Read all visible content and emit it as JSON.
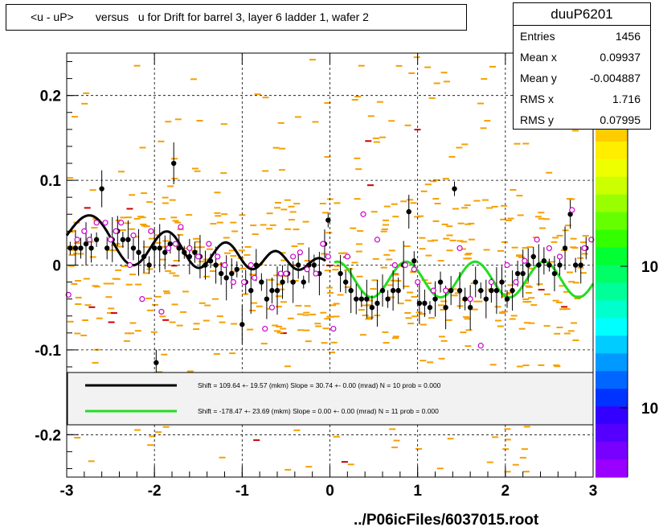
{
  "title": "<u - uP>       versus   u for Drift for barrel 3, layer 6 ladder 1, wafer 2",
  "stats": {
    "name": "duuP6201",
    "rows": [
      {
        "key": "Entries",
        "value": "1456"
      },
      {
        "key": "Mean x",
        "value": "0.09937"
      },
      {
        "key": "Mean y",
        "value": "-0.004887"
      },
      {
        "key": "RMS x",
        "value": "1.716"
      },
      {
        "key": "RMS y",
        "value": "0.07995"
      }
    ]
  },
  "footer": "../P06icFiles/6037015.root",
  "colorbar": {
    "labels": [
      "10",
      "10"
    ]
  },
  "fit_legend": [
    {
      "color": "#000000",
      "text": "Shift =   109.64 +- 19.57 (mkm) Slope =    30.74 +- 0.00 (mrad)  N = 10 prob = 0.000"
    },
    {
      "color": "#22dd22",
      "text": "Shift =  -178.47 +- 23.69 (mkm) Slope =     0.00 +- 0.00 (mrad)  N = 11 prob = 0.000"
    }
  ],
  "chart_data": {
    "type": "scatter",
    "title": "<u - uP>       versus   u for Drift for barrel 3, layer 6 ladder 1, wafer 2",
    "xlim": [
      -3,
      3
    ],
    "ylim": [
      -0.25,
      0.25
    ],
    "xticks": [
      -3,
      -2,
      -1,
      0,
      1,
      2,
      3
    ],
    "xtick_labels": [
      "-3",
      "-2",
      "-1",
      "0",
      "1",
      "2",
      "3"
    ],
    "yticks": [
      -0.2,
      -0.1,
      0,
      0.1,
      0.2
    ],
    "ytick_labels": [
      "-0.2",
      "-0.1",
      "0",
      "0.1",
      "0.2"
    ],
    "grid": true,
    "series": [
      {
        "name": "profile (black)",
        "points": [
          [
            -2.96,
            0.02
          ],
          [
            -2.9,
            0.02
          ],
          [
            -2.84,
            0.02
          ],
          [
            -2.78,
            0.025
          ],
          [
            -2.72,
            0.02
          ],
          [
            -2.66,
            0.03
          ],
          [
            -2.6,
            0.09
          ],
          [
            -2.54,
            0.02
          ],
          [
            -2.48,
            0.03
          ],
          [
            -2.42,
            0.04
          ],
          [
            -2.36,
            0.03
          ],
          [
            -2.3,
            0.03
          ],
          [
            -2.24,
            0.02
          ],
          [
            -2.18,
            0.015
          ],
          [
            -2.12,
            0.01
          ],
          [
            -2.06,
            0.0
          ],
          [
            -2.0,
            0.02
          ],
          [
            -1.98,
            -0.115
          ],
          [
            -1.94,
            0.02
          ],
          [
            -1.88,
            0.015
          ],
          [
            -1.82,
            0.025
          ],
          [
            -1.78,
            0.12
          ],
          [
            -1.72,
            0.02
          ],
          [
            -1.66,
            0.015
          ],
          [
            -1.6,
            0.01
          ],
          [
            -1.54,
            0.015
          ],
          [
            -1.48,
            0.01
          ],
          [
            -1.42,
            0.0
          ],
          [
            -1.36,
            0.005
          ],
          [
            -1.3,
            0.0
          ],
          [
            -1.24,
            -0.01
          ],
          [
            -1.18,
            -0.015
          ],
          [
            -1.12,
            -0.01
          ],
          [
            -1.06,
            -0.005
          ],
          [
            -1.0,
            -0.07
          ],
          [
            -0.96,
            -0.02
          ],
          [
            -0.9,
            -0.03
          ],
          [
            -0.84,
            0.0
          ],
          [
            -0.78,
            -0.02
          ],
          [
            -0.72,
            -0.04
          ],
          [
            -0.66,
            -0.03
          ],
          [
            -0.6,
            -0.03
          ],
          [
            -0.54,
            -0.02
          ],
          [
            -0.48,
            -0.01
          ],
          [
            -0.42,
            -0.02
          ],
          [
            -0.36,
            0.0
          ],
          [
            -0.3,
            -0.02
          ],
          [
            -0.24,
            0.0
          ],
          [
            -0.18,
            0.0
          ],
          [
            -0.12,
            -0.01
          ],
          [
            -0.06,
            0.025
          ],
          [
            -0.02,
            0.053
          ],
          [
            0.12,
            -0.01
          ],
          [
            0.18,
            -0.02
          ],
          [
            0.24,
            -0.03
          ],
          [
            0.3,
            -0.04
          ],
          [
            0.36,
            -0.04
          ],
          [
            0.42,
            -0.04
          ],
          [
            0.48,
            -0.05
          ],
          [
            0.54,
            -0.045
          ],
          [
            0.6,
            -0.03
          ],
          [
            0.66,
            -0.04
          ],
          [
            0.72,
            -0.03
          ],
          [
            0.78,
            -0.03
          ],
          [
            0.84,
            0.0
          ],
          [
            0.9,
            0.063
          ],
          [
            0.96,
            0.005
          ],
          [
            1.02,
            -0.045
          ],
          [
            1.08,
            -0.045
          ],
          [
            1.14,
            -0.05
          ],
          [
            1.2,
            -0.04
          ],
          [
            1.26,
            -0.02
          ],
          [
            1.32,
            -0.05
          ],
          [
            1.38,
            -0.03
          ],
          [
            1.42,
            0.09
          ],
          [
            1.48,
            -0.03
          ],
          [
            1.54,
            -0.04
          ],
          [
            1.6,
            -0.05
          ],
          [
            1.66,
            -0.02
          ],
          [
            1.72,
            -0.03
          ],
          [
            1.78,
            -0.04
          ],
          [
            1.84,
            -0.03
          ],
          [
            1.9,
            -0.03
          ],
          [
            1.96,
            -0.02
          ],
          [
            2.02,
            -0.04
          ],
          [
            2.08,
            -0.03
          ],
          [
            2.14,
            -0.01
          ],
          [
            2.2,
            -0.01
          ],
          [
            2.26,
            -0.0
          ],
          [
            2.32,
            0.01
          ],
          [
            2.38,
            0.0
          ],
          [
            2.44,
            0.005
          ],
          [
            2.5,
            0.0
          ],
          [
            2.56,
            -0.01
          ],
          [
            2.62,
            0.0
          ],
          [
            2.68,
            0.02
          ],
          [
            2.74,
            0.06
          ],
          [
            2.8,
            0.0
          ],
          [
            2.86,
            0.0
          ],
          [
            2.92,
            0.02
          ]
        ]
      },
      {
        "name": "open markers (magenta)",
        "points": [
          [
            -2.98,
            -0.035
          ],
          [
            -2.88,
            0.03
          ],
          [
            -2.8,
            0.04
          ],
          [
            -2.74,
            0.03
          ],
          [
            -2.66,
            0.05
          ],
          [
            -2.56,
            0.05
          ],
          [
            -2.5,
            0.03
          ],
          [
            -2.44,
            0.04
          ],
          [
            -2.38,
            0.05
          ],
          [
            -2.28,
            0.0
          ],
          [
            -2.24,
            0.035
          ],
          [
            -2.14,
            -0.04
          ],
          [
            -2.04,
            0.04
          ],
          [
            -1.92,
            -0.055
          ],
          [
            -1.84,
            0.02
          ],
          [
            -1.76,
            0.025
          ],
          [
            -1.7,
            0.045
          ],
          [
            -1.6,
            0.02
          ],
          [
            -1.5,
            0.01
          ],
          [
            -1.38,
            0.025
          ],
          [
            -1.28,
            0.01
          ],
          [
            -1.2,
            0.0
          ],
          [
            -1.1,
            -0.02
          ],
          [
            -0.98,
            -0.02
          ],
          [
            -0.9,
            0.0
          ],
          [
            -0.86,
            -0.015
          ],
          [
            -0.74,
            -0.075
          ],
          [
            -0.66,
            -0.05
          ],
          [
            -0.56,
            -0.01
          ],
          [
            -0.5,
            -0.01
          ],
          [
            -0.42,
            0.01
          ],
          [
            -0.34,
            0.015
          ],
          [
            -0.26,
            -0.005
          ],
          [
            -0.16,
            -0.01
          ],
          [
            -0.08,
            0.025
          ],
          [
            -0.02,
            0.01
          ],
          [
            0.04,
            -0.075
          ],
          [
            0.2,
            0.01
          ],
          [
            0.38,
            0.06
          ],
          [
            0.54,
            0.03
          ],
          [
            0.74,
            0.0
          ],
          [
            0.86,
            0.0
          ],
          [
            0.96,
            -0.005
          ],
          [
            1.0,
            -0.02
          ],
          [
            1.18,
            -0.03
          ],
          [
            1.32,
            -0.03
          ],
          [
            1.48,
            0.02
          ],
          [
            1.6,
            -0.04
          ],
          [
            1.72,
            -0.095
          ],
          [
            1.84,
            -0.02
          ],
          [
            2.02,
            0.0
          ],
          [
            2.12,
            -0.02
          ],
          [
            2.22,
            0.005
          ],
          [
            2.36,
            0.03
          ],
          [
            2.5,
            0.02
          ],
          [
            2.62,
            0.01
          ],
          [
            2.76,
            0.065
          ],
          [
            2.9,
            0.02
          ],
          [
            2.98,
            0.03
          ]
        ]
      }
    ],
    "fits": [
      {
        "color": "#000000",
        "x_range": [
          -3.0,
          -0.05
        ]
      },
      {
        "color": "#22dd22",
        "x_range": [
          0.05,
          3.0
        ]
      }
    ]
  }
}
